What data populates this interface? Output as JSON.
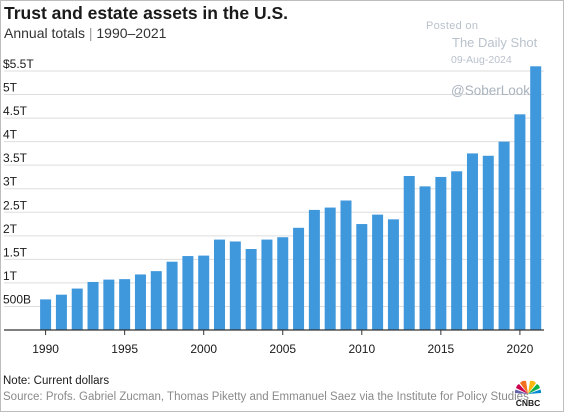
{
  "header": {
    "title": "Trust and estate assets in the U.S.",
    "subtitle_main": "Annual totals",
    "subtitle_sep": "|",
    "subtitle_range": "1990–2021"
  },
  "watermark": {
    "posted_on": "Posted on",
    "publisher": "The Daily Shot",
    "date": "09-Aug-2024",
    "handle": "@SoberLook"
  },
  "footer": {
    "note": "Note: Current dollars",
    "source": "Source: Profs. Gabriel Zucman, Thomas Piketty and Emmanuel Saez via the Institute for Policy Studies"
  },
  "logo": {
    "text": "CNBC"
  },
  "colors": {
    "bar": "#3f97dc",
    "grid": "#dddddd",
    "axis": "#333333",
    "text": "#1a1a1a"
  },
  "chart_data": {
    "type": "bar",
    "title": "Trust and estate assets in the U.S.",
    "subtitle": "Annual totals | 1990–2021",
    "unit": "trillions of US dollars (current)",
    "categories": [
      1990,
      1991,
      1992,
      1993,
      1994,
      1995,
      1996,
      1997,
      1998,
      1999,
      2000,
      2001,
      2002,
      2003,
      2004,
      2005,
      2006,
      2007,
      2008,
      2009,
      2010,
      2011,
      2012,
      2013,
      2014,
      2015,
      2016,
      2017,
      2018,
      2019,
      2020,
      2021
    ],
    "values": [
      0.65,
      0.75,
      0.88,
      1.02,
      1.07,
      1.08,
      1.18,
      1.25,
      1.45,
      1.57,
      1.58,
      1.92,
      1.88,
      1.72,
      1.92,
      1.97,
      2.17,
      2.55,
      2.6,
      2.75,
      2.25,
      2.45,
      2.35,
      3.27,
      3.05,
      3.25,
      3.37,
      3.75,
      3.7,
      4.0,
      4.58,
      5.6
    ],
    "ylim": [
      0,
      5.5
    ],
    "yticks": [
      0.5,
      1,
      1.5,
      2,
      2.5,
      3,
      3.5,
      4,
      4.5,
      5,
      5.5
    ],
    "ytick_labels": [
      "500B",
      "1T",
      "1.5T",
      "2T",
      "2.5T",
      "3T",
      "3.5T",
      "4T",
      "4.5T",
      "5T",
      "$5.5T"
    ],
    "xticks": [
      1990,
      1995,
      2000,
      2005,
      2010,
      2015,
      2020
    ],
    "xtick_labels": [
      "1990",
      "1995",
      "2000",
      "2005",
      "2010",
      "2015",
      "2020"
    ],
    "grid": true,
    "legend": "none"
  }
}
